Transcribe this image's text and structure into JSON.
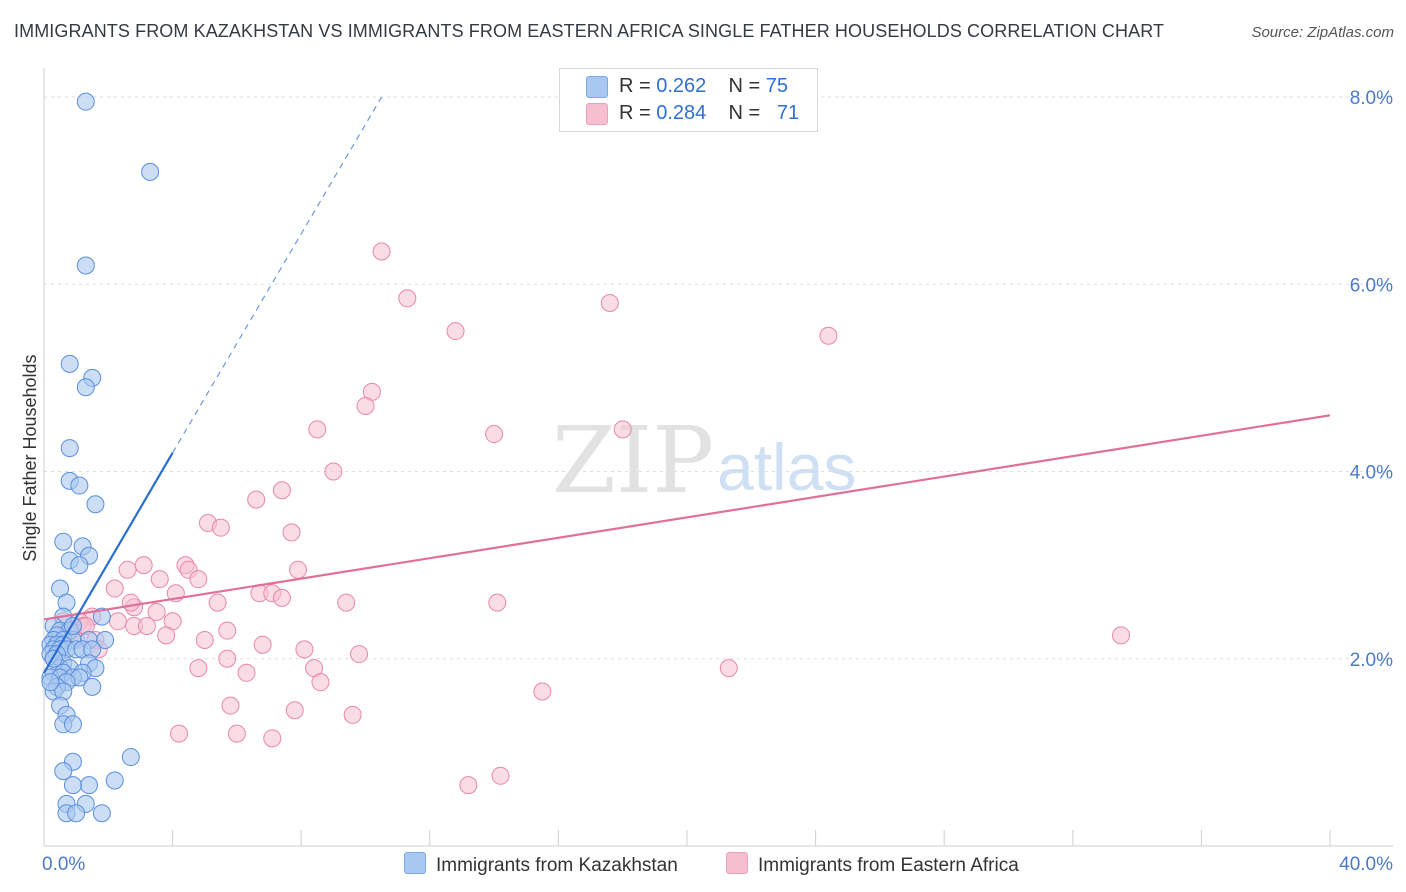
{
  "title": "IMMIGRANTS FROM KAZAKHSTAN VS IMMIGRANTS FROM EASTERN AFRICA SINGLE FATHER HOUSEHOLDS CORRELATION CHART",
  "source": "Source: ZipAtlas.com",
  "watermark": {
    "zip": "ZIP",
    "atlas": "atlas"
  },
  "legend": {
    "rows": [
      {
        "r_label": "R = ",
        "r_value": "0.262",
        "n_label": "N = ",
        "n_value": "75"
      },
      {
        "r_label": "R = ",
        "r_value": "0.284",
        "n_label": "N = ",
        "n_value": "71"
      }
    ]
  },
  "bottom_legend": {
    "series1": "Immigrants from Kazakhstan",
    "series2": "Immigrants from Eastern Africa"
  },
  "colors": {
    "blue_fill": "#a9c8f0",
    "blue_stroke": "#5b8fdc",
    "blue_line": "#2a6fd1",
    "pink_fill": "#f6bfd0",
    "pink_stroke": "#e888a8",
    "pink_line": "#e0709a",
    "tick_text": "#4a7ac9",
    "grid": "#dedede"
  },
  "chart_data": {
    "type": "scatter",
    "title": "IMMIGRANTS FROM KAZAKHSTAN VS IMMIGRANTS FROM EASTERN AFRICA SINGLE FATHER HOUSEHOLDS CORRELATION CHART",
    "xlabel": "",
    "ylabel": "Single Father Households",
    "xlim": [
      0,
      40
    ],
    "ylim": [
      0,
      8
    ],
    "x_tick_labels": {
      "min": "0.0%",
      "max": "40.0%"
    },
    "y_ticks": [
      {
        "value": 2,
        "label": "2.0%"
      },
      {
        "value": 4,
        "label": "4.0%"
      },
      {
        "value": 6,
        "label": "6.0%"
      },
      {
        "value": 8,
        "label": "8.0%"
      }
    ],
    "series": [
      {
        "name": "Immigrants from Kazakhstan",
        "R": 0.262,
        "N": 75,
        "trend": {
          "x0": 0,
          "y0": 1.85,
          "x1": 4.0,
          "y1": 4.2,
          "dashed_to_x": 10.5,
          "dashed_to_y": 8.0
        },
        "points": [
          [
            1.3,
            7.95
          ],
          [
            3.3,
            7.2
          ],
          [
            1.3,
            6.2
          ],
          [
            0.8,
            5.15
          ],
          [
            1.5,
            5.0
          ],
          [
            1.3,
            4.9
          ],
          [
            0.8,
            4.25
          ],
          [
            0.8,
            3.9
          ],
          [
            1.1,
            3.85
          ],
          [
            1.6,
            3.65
          ],
          [
            0.6,
            3.25
          ],
          [
            1.2,
            3.2
          ],
          [
            0.8,
            3.05
          ],
          [
            1.4,
            3.1
          ],
          [
            1.1,
            3.0
          ],
          [
            0.5,
            2.75
          ],
          [
            0.7,
            2.6
          ],
          [
            0.6,
            2.45
          ],
          [
            1.8,
            2.45
          ],
          [
            0.3,
            2.35
          ],
          [
            0.5,
            2.3
          ],
          [
            0.8,
            2.3
          ],
          [
            0.4,
            2.25
          ],
          [
            0.3,
            2.2
          ],
          [
            0.6,
            2.2
          ],
          [
            0.9,
            2.2
          ],
          [
            1.4,
            2.2
          ],
          [
            1.9,
            2.2
          ],
          [
            0.2,
            2.15
          ],
          [
            0.4,
            2.15
          ],
          [
            0.6,
            2.15
          ],
          [
            0.3,
            2.1
          ],
          [
            0.5,
            2.1
          ],
          [
            0.7,
            2.1
          ],
          [
            1.0,
            2.1
          ],
          [
            1.2,
            2.1
          ],
          [
            1.5,
            2.1
          ],
          [
            0.2,
            2.05
          ],
          [
            0.4,
            2.05
          ],
          [
            0.3,
            2.0
          ],
          [
            0.6,
            1.95
          ],
          [
            1.4,
            1.95
          ],
          [
            0.5,
            1.9
          ],
          [
            0.8,
            1.9
          ],
          [
            1.6,
            1.9
          ],
          [
            0.3,
            1.85
          ],
          [
            0.6,
            1.85
          ],
          [
            1.2,
            1.85
          ],
          [
            0.2,
            1.8
          ],
          [
            0.5,
            1.8
          ],
          [
            0.9,
            1.8
          ],
          [
            1.1,
            1.8
          ],
          [
            0.7,
            1.75
          ],
          [
            0.4,
            1.7
          ],
          [
            1.5,
            1.7
          ],
          [
            0.3,
            1.65
          ],
          [
            0.6,
            1.65
          ],
          [
            0.5,
            1.5
          ],
          [
            0.7,
            1.4
          ],
          [
            0.6,
            1.3
          ],
          [
            0.9,
            1.3
          ],
          [
            2.7,
            0.95
          ],
          [
            0.9,
            0.9
          ],
          [
            0.6,
            0.8
          ],
          [
            2.2,
            0.7
          ],
          [
            1.4,
            0.65
          ],
          [
            0.9,
            0.65
          ],
          [
            0.7,
            0.45
          ],
          [
            1.3,
            0.45
          ],
          [
            0.7,
            0.35
          ],
          [
            1.0,
            0.35
          ],
          [
            1.8,
            0.35
          ],
          [
            0.3,
            2.0
          ],
          [
            0.2,
            1.75
          ],
          [
            0.9,
            2.35
          ]
        ]
      },
      {
        "name": "Immigrants from Eastern Africa",
        "R": 0.284,
        "N": 71,
        "trend": {
          "x0": 0,
          "y0": 2.42,
          "x1": 40,
          "y1": 4.6
        },
        "points": [
          [
            10.5,
            6.35
          ],
          [
            11.3,
            5.85
          ],
          [
            17.6,
            5.8
          ],
          [
            12.8,
            5.5
          ],
          [
            24.4,
            5.45
          ],
          [
            10.2,
            4.85
          ],
          [
            10.0,
            4.7
          ],
          [
            8.5,
            4.45
          ],
          [
            14.0,
            4.4
          ],
          [
            18.0,
            4.45
          ],
          [
            9.0,
            4.0
          ],
          [
            7.4,
            3.8
          ],
          [
            6.6,
            3.7
          ],
          [
            5.1,
            3.45
          ],
          [
            5.5,
            3.4
          ],
          [
            7.7,
            3.35
          ],
          [
            3.1,
            3.0
          ],
          [
            4.4,
            3.0
          ],
          [
            7.9,
            2.95
          ],
          [
            4.5,
            2.95
          ],
          [
            2.6,
            2.95
          ],
          [
            3.6,
            2.85
          ],
          [
            4.8,
            2.85
          ],
          [
            2.2,
            2.75
          ],
          [
            4.1,
            2.7
          ],
          [
            6.7,
            2.7
          ],
          [
            7.1,
            2.7
          ],
          [
            7.4,
            2.65
          ],
          [
            9.4,
            2.6
          ],
          [
            2.8,
            2.55
          ],
          [
            5.4,
            2.6
          ],
          [
            2.7,
            2.6
          ],
          [
            3.5,
            2.5
          ],
          [
            14.1,
            2.6
          ],
          [
            1.5,
            2.45
          ],
          [
            1.1,
            2.4
          ],
          [
            2.3,
            2.4
          ],
          [
            4.0,
            2.4
          ],
          [
            1.2,
            2.35
          ],
          [
            2.8,
            2.35
          ],
          [
            3.2,
            2.35
          ],
          [
            0.7,
            2.3
          ],
          [
            0.9,
            2.3
          ],
          [
            5.7,
            2.3
          ],
          [
            3.8,
            2.25
          ],
          [
            0.5,
            2.25
          ],
          [
            1.6,
            2.2
          ],
          [
            5.0,
            2.2
          ],
          [
            6.8,
            2.15
          ],
          [
            8.1,
            2.1
          ],
          [
            9.8,
            2.05
          ],
          [
            1.7,
            2.1
          ],
          [
            5.7,
            2.0
          ],
          [
            4.8,
            1.9
          ],
          [
            8.4,
            1.9
          ],
          [
            21.3,
            1.9
          ],
          [
            6.3,
            1.85
          ],
          [
            8.6,
            1.75
          ],
          [
            15.5,
            1.65
          ],
          [
            5.8,
            1.5
          ],
          [
            7.8,
            1.45
          ],
          [
            9.6,
            1.4
          ],
          [
            4.2,
            1.2
          ],
          [
            6.0,
            1.2
          ],
          [
            7.1,
            1.15
          ],
          [
            14.2,
            0.75
          ],
          [
            13.2,
            0.65
          ],
          [
            33.5,
            2.25
          ],
          [
            1.0,
            2.2
          ],
          [
            1.3,
            2.35
          ],
          [
            0.6,
            2.4
          ]
        ]
      }
    ]
  }
}
